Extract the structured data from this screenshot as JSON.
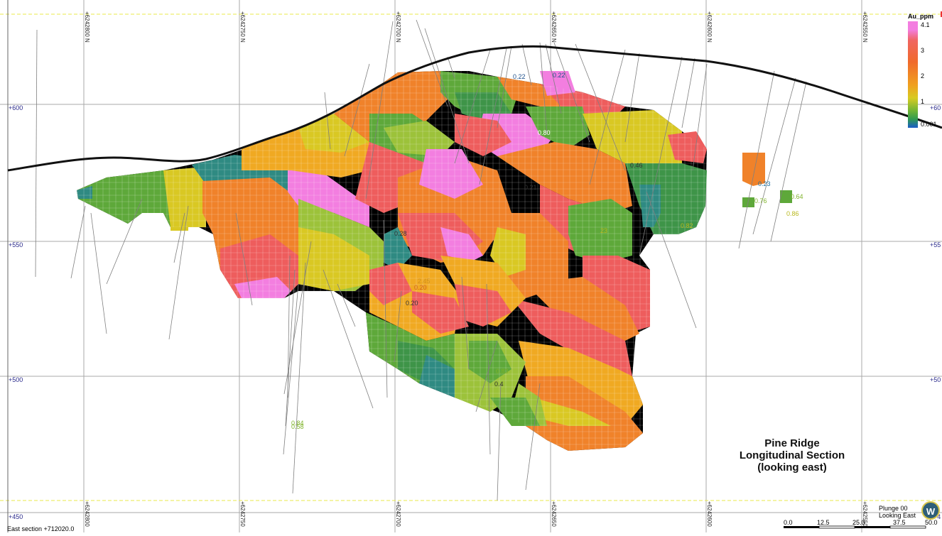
{
  "view": {
    "northing_labels": [
      "+6242800 N",
      "+6242750 N",
      "+6242700 N",
      "+6242650 N",
      "+6242600 N",
      "+6242550 N"
    ],
    "bottom_northing_labels": [
      "+6242800",
      "+6242750",
      "+6242700",
      "+6242650",
      "+6242600",
      "+6242550"
    ],
    "elevation_labels_left": [
      "+600",
      "+550",
      "+500",
      "+450"
    ],
    "elevation_labels_right": [
      "+60",
      "+55",
      "+50",
      "+4"
    ],
    "section_label": "East section +712020.0",
    "plunge": "Plunge 00",
    "looking": "Looking East",
    "logo_letter": "W"
  },
  "title": {
    "line1": "Pine Ridge",
    "line2": "Longitudinal Section",
    "line3": "(looking east)"
  },
  "legend": {
    "title": "Au_ppm",
    "ticks": [
      "4.1",
      "3",
      "2",
      "1",
      "0.001"
    ]
  },
  "scale_bar": {
    "labels": [
      "0.0",
      "12.5",
      "25.0",
      "37.5",
      "50.0"
    ]
  },
  "assay_labels": [
    {
      "text": "0.22",
      "color": "#1d4f8a"
    },
    {
      "text": "0.22",
      "color": "#1d4f8a"
    },
    {
      "text": "0.21",
      "color": "#333333"
    },
    {
      "text": "0.46",
      "color": "#333333"
    },
    {
      "text": "0.23",
      "color": "#1d6fa0"
    },
    {
      "text": "0.64",
      "color": "#7fb32b"
    },
    {
      "text": "0.76",
      "color": "#7fb32b"
    },
    {
      "text": "0.86",
      "color": "#b8b81e"
    },
    {
      "text": "0.82",
      "color": "#b8b81e"
    },
    {
      "text": "0.28",
      "color": "#333333"
    },
    {
      "text": "0.20",
      "color": "#d06020"
    },
    {
      "text": "2.45",
      "color": "#d09020"
    },
    {
      "text": "0.20",
      "color": "#333333"
    },
    {
      "text": "0.83",
      "color": "#7fb32b"
    },
    {
      "text": "0.4",
      "color": "#333333"
    },
    {
      "text": "0.58",
      "color": "#7fb32b"
    },
    {
      "text": "0.84",
      "color": "#7fb32b"
    },
    {
      "text": "0.80",
      "color": "#ffffff"
    },
    {
      "text": "23",
      "color": "#b8b81e"
    }
  ],
  "colors": {
    "grid": "#a8a8a8",
    "axis_label": "#2b2b8c",
    "yellow_limit": "#e8e84a",
    "topo": "#111111"
  }
}
